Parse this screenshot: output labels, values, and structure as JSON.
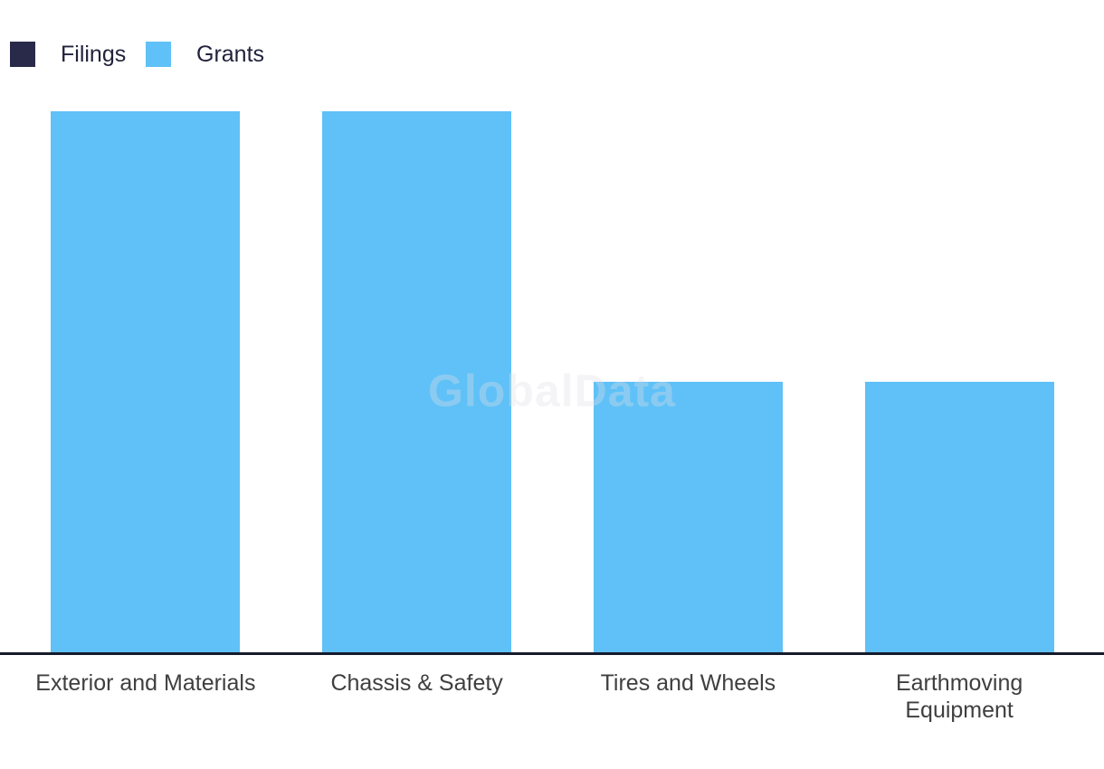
{
  "legend": {
    "items": [
      {
        "label": "Filings",
        "color": "#292949"
      },
      {
        "label": "Grants",
        "color": "#5FC1F7"
      }
    ]
  },
  "watermark": {
    "text": "GlobalData",
    "color": "rgba(224,224,228,0.35)"
  },
  "chart_data": {
    "type": "bar",
    "title": "",
    "xlabel": "",
    "ylabel": "",
    "categories": [
      "Exterior and Materials",
      "Chassis & Safety",
      "Tires and Wheels",
      "Earthmoving Equipment"
    ],
    "category_display_lines": [
      [
        "Exterior and Materials"
      ],
      [
        "Chassis & Safety"
      ],
      [
        "Tires and Wheels"
      ],
      [
        "Earthmoving",
        "Equipment"
      ]
    ],
    "series": [
      {
        "name": "Filings",
        "color": "#292949",
        "values": [
          0,
          0,
          0,
          0
        ]
      },
      {
        "name": "Grants",
        "color": "#5FC1F7",
        "values": [
          100,
          100,
          50,
          50
        ]
      }
    ],
    "value_axis": {
      "tick_labels_visible": false,
      "unit": "relative % of tallest bar (no numeric axis shown)"
    },
    "grid": false,
    "legend_position": "top-left",
    "colors": {
      "background": "#FFFFFF",
      "axis_line": "#161B2C",
      "category_label": "#3F3F3F",
      "legend_text": "#22223C"
    }
  }
}
